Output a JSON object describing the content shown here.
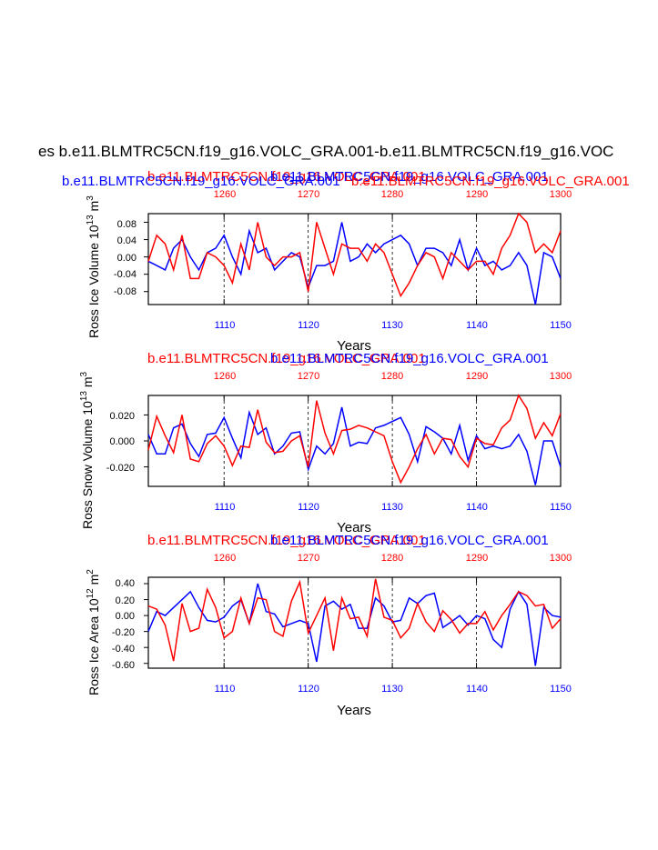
{
  "page_title": "es b.e11.BLMTRC5CN.f19_g16.VOLC_GRA.001-b.e11.BLMTRC5CN.f19_g16.VOC",
  "colors": {
    "blue": "#0000ff",
    "red": "#ff0000",
    "black": "#000000"
  },
  "chart_data": [
    {
      "type": "line",
      "title_blue": "b.e11.BLMTRC5CN.f19_g16.VOLC_GRA.001",
      "title_red": "b.e11.BLMTRC5CN.f19_g16.VOLC_GRA.001",
      "title_red2": "b.e11.BLMTRC5CN.f19_g16.VOLC_GRA.001",
      "title_blue2": "b.e11.BLMTRC5CN.f19_g16.VOLC_GRA.001",
      "title_overlay_red": "b.e11.BLMTRC5CN.f19_g16.VOLC_GRA.001",
      "ylabel": "Ross Ice Volume 10",
      "ylabel_exp": "13",
      "ylabel_unit": " m",
      "ylabel_unit_exp": "3",
      "xlabel": "Years",
      "xlim_bottom": [
        1101,
        1150
      ],
      "xlim_top": [
        1251,
        1300
      ],
      "ylim": [
        -0.11,
        0.1
      ],
      "yticks": [
        0.08,
        0.04,
        0.0,
        -0.04,
        -0.08
      ],
      "ytick_labels": [
        "0.08",
        "0.04",
        "0.00",
        "-0.04",
        "-0.08"
      ],
      "xticks_bottom": [
        1110,
        1120,
        1130,
        1140,
        1150
      ],
      "xticks_bottom_labels": [
        "1110",
        "1120",
        "1130",
        "1140",
        "1150"
      ],
      "xticks_top": [
        1260,
        1270,
        1280,
        1290,
        1300
      ],
      "xticks_top_labels": [
        "1260",
        "1270",
        "1280",
        "1290",
        "1300"
      ],
      "series": [
        {
          "name": "blue (years 1101-1150)",
          "color": "blue",
          "axis": "bottom",
          "values": [
            -0.01,
            -0.02,
            -0.03,
            0.02,
            0.04,
            0.0,
            -0.03,
            0.01,
            0.02,
            0.05,
            0.0,
            -0.04,
            0.06,
            0.01,
            0.02,
            -0.03,
            -0.01,
            0.01,
            0.0,
            -0.07,
            -0.02,
            -0.02,
            -0.01,
            0.08,
            -0.01,
            0.0,
            0.03,
            0.01,
            0.03,
            0.04,
            0.05,
            0.03,
            -0.02,
            0.02,
            0.02,
            0.01,
            -0.02,
            0.04,
            -0.03,
            0.02,
            -0.02,
            -0.01,
            -0.03,
            -0.02,
            0.01,
            -0.02,
            -0.11,
            0.01,
            0.0,
            -0.05
          ]
        },
        {
          "name": "red (years 1251-1300)",
          "color": "red",
          "axis": "top",
          "values": [
            -0.01,
            0.05,
            0.03,
            -0.03,
            0.05,
            -0.05,
            -0.05,
            0.01,
            0.0,
            -0.02,
            -0.06,
            0.03,
            -0.03,
            0.08,
            0.0,
            -0.02,
            0.0,
            0.0,
            0.01,
            -0.08,
            0.08,
            0.02,
            -0.04,
            0.03,
            0.02,
            0.02,
            -0.01,
            0.03,
            0.01,
            -0.04,
            -0.09,
            -0.06,
            -0.02,
            0.01,
            0.0,
            -0.05,
            0.01,
            -0.01,
            -0.03,
            -0.01,
            -0.01,
            -0.04,
            0.02,
            0.05,
            0.1,
            0.08,
            0.01,
            0.03,
            0.01,
            0.06
          ]
        }
      ]
    },
    {
      "type": "line",
      "title_red": "b.e11.BLMTRC5CN.f19_g16.VOLC_GRA.001",
      "title_blue": "b.e11.BLMTRC5CN.f19_g16.VOLC_GRA.001",
      "ylabel": "Ross Snow Volume 10",
      "ylabel_exp": "13",
      "ylabel_unit": " m",
      "ylabel_unit_exp": "3",
      "xlabel": "Years",
      "xlim_bottom": [
        1101,
        1150
      ],
      "xlim_top": [
        1251,
        1300
      ],
      "ylim": [
        -0.035,
        0.035
      ],
      "yticks": [
        0.02,
        0.0,
        -0.02
      ],
      "ytick_labels": [
        "0.020",
        "0.000",
        "-0.020"
      ],
      "xticks_bottom": [
        1110,
        1120,
        1130,
        1140,
        1150
      ],
      "xticks_bottom_labels": [
        "1110",
        "1120",
        "1130",
        "1140",
        "1150"
      ],
      "xticks_top": [
        1260,
        1270,
        1280,
        1290,
        1300
      ],
      "xticks_top_labels": [
        "1260",
        "1270",
        "1280",
        "1290",
        "1300"
      ],
      "series": [
        {
          "name": "blue (years 1101-1150)",
          "color": "blue",
          "axis": "bottom",
          "values": [
            0.005,
            -0.01,
            -0.01,
            0.01,
            0.013,
            -0.002,
            -0.012,
            0.005,
            0.006,
            0.018,
            0.002,
            -0.013,
            0.022,
            0.005,
            0.01,
            -0.01,
            -0.004,
            0.006,
            0.007,
            -0.022,
            -0.004,
            -0.01,
            -0.002,
            0.026,
            -0.004,
            -0.001,
            -0.002,
            0.01,
            0.012,
            0.015,
            0.018,
            0.005,
            -0.016,
            0.011,
            0.007,
            0.002,
            -0.01,
            0.012,
            -0.015,
            0.004,
            -0.006,
            -0.004,
            -0.006,
            -0.004,
            0.005,
            -0.008,
            -0.034,
            0.0,
            0.0,
            -0.02
          ]
        },
        {
          "name": "red (years 1251-1300)",
          "color": "red",
          "axis": "top",
          "values": [
            -0.007,
            0.019,
            0.004,
            -0.009,
            0.02,
            -0.014,
            -0.016,
            -0.002,
            0.004,
            -0.004,
            -0.019,
            -0.004,
            -0.005,
            0.024,
            -0.001,
            -0.009,
            -0.008,
            0.0,
            0.004,
            -0.02,
            0.031,
            0.006,
            -0.01,
            0.008,
            0.009,
            0.012,
            0.01,
            0.007,
            0.004,
            -0.016,
            -0.032,
            -0.02,
            -0.006,
            0.005,
            -0.01,
            0.002,
            0.001,
            -0.012,
            -0.02,
            0.002,
            -0.002,
            -0.003,
            0.01,
            0.016,
            0.035,
            0.025,
            0.002,
            0.014,
            0.004,
            0.021
          ]
        }
      ]
    },
    {
      "type": "line",
      "title_red": "b.e11.BLMTRC5CN.f19_g16.VOLC_GRA.001",
      "title_blue": "b.e11.BLMTRC5CN.f19_g16.VOLC_GRA.001",
      "ylabel": "Ross Ice Area 10",
      "ylabel_exp": "12",
      "ylabel_unit": " m",
      "ylabel_unit_exp": "2",
      "xlabel": "Years",
      "xlim_bottom": [
        1101,
        1150
      ],
      "xlim_top": [
        1251,
        1300
      ],
      "ylim": [
        -0.66,
        0.48
      ],
      "yticks": [
        0.4,
        0.2,
        0.0,
        -0.2,
        -0.4,
        -0.6
      ],
      "ytick_labels": [
        "0.40",
        "0.20",
        "0.00",
        "-0.20",
        "-0.40",
        "-0.60"
      ],
      "xticks_bottom": [
        1110,
        1120,
        1130,
        1140,
        1150
      ],
      "xticks_bottom_labels": [
        "1110",
        "1120",
        "1130",
        "1140",
        "1150"
      ],
      "xticks_top": [
        1260,
        1270,
        1280,
        1290,
        1300
      ],
      "xticks_top_labels": [
        "1260",
        "1270",
        "1280",
        "1290",
        "1300"
      ],
      "series": [
        {
          "name": "blue (years 1101-1150)",
          "color": "blue",
          "axis": "bottom",
          "values": [
            -0.2,
            0.05,
            0.0,
            0.1,
            0.2,
            0.3,
            0.1,
            -0.06,
            -0.08,
            -0.02,
            0.12,
            0.2,
            -0.1,
            0.4,
            0.05,
            0.02,
            -0.14,
            -0.1,
            -0.06,
            -0.1,
            -0.58,
            0.12,
            0.18,
            0.08,
            0.14,
            -0.16,
            -0.16,
            0.22,
            0.12,
            -0.08,
            -0.06,
            0.22,
            0.15,
            0.25,
            0.28,
            -0.15,
            -0.08,
            0.0,
            -0.12,
            0.0,
            -0.04,
            -0.3,
            -0.4,
            0.08,
            0.3,
            0.14,
            -0.63,
            0.1,
            0.0,
            -0.02
          ]
        },
        {
          "name": "red (years 1251-1300)",
          "color": "red",
          "axis": "top",
          "values": [
            0.12,
            0.08,
            -0.12,
            -0.57,
            0.15,
            -0.2,
            -0.16,
            0.33,
            0.1,
            -0.28,
            -0.2,
            0.22,
            -0.1,
            0.22,
            0.2,
            -0.2,
            -0.26,
            0.18,
            0.42,
            -0.22,
            0.0,
            0.22,
            -0.44,
            0.22,
            -0.04,
            -0.02,
            -0.26,
            0.46,
            -0.02,
            -0.06,
            -0.28,
            -0.16,
            0.15,
            -0.08,
            -0.2,
            0.06,
            -0.05,
            -0.22,
            -0.1,
            -0.1,
            0.05,
            -0.18,
            0.0,
            0.14,
            0.3,
            0.25,
            0.12,
            0.14,
            -0.16,
            -0.04
          ]
        }
      ]
    }
  ]
}
